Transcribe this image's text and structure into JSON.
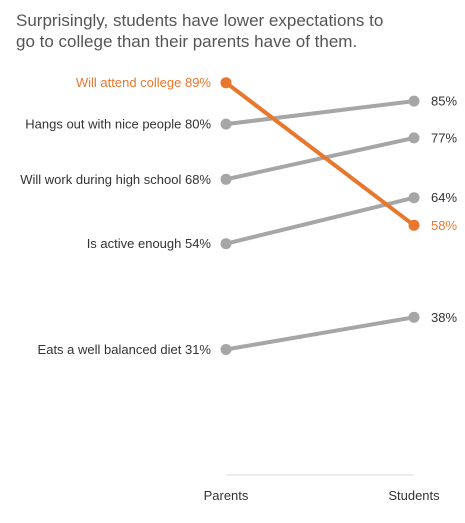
{
  "chart_data": {
    "type": "line",
    "title": "Surprisingly, students have lower expectations to go to college than their parents have of them.",
    "categories": [
      "Parents",
      "Students"
    ],
    "ylim": [
      25,
      95
    ],
    "grid": false,
    "legend": "none",
    "series": [
      {
        "name": "Will attend college",
        "values": [
          89,
          58
        ],
        "highlight": true
      },
      {
        "name": "Hangs out with nice people",
        "values": [
          80,
          85
        ],
        "highlight": false
      },
      {
        "name": "Will work during high school",
        "values": [
          68,
          77
        ],
        "highlight": false
      },
      {
        "name": "Is active enough",
        "values": [
          54,
          64
        ],
        "highlight": false
      },
      {
        "name": "Eats a well balanced diet",
        "values": [
          31,
          38
        ],
        "highlight": false
      }
    ],
    "colors": {
      "highlight": "#E8772E",
      "default": "#A6A6A6",
      "text": "#333333",
      "axis": "#D9D9D9"
    }
  }
}
